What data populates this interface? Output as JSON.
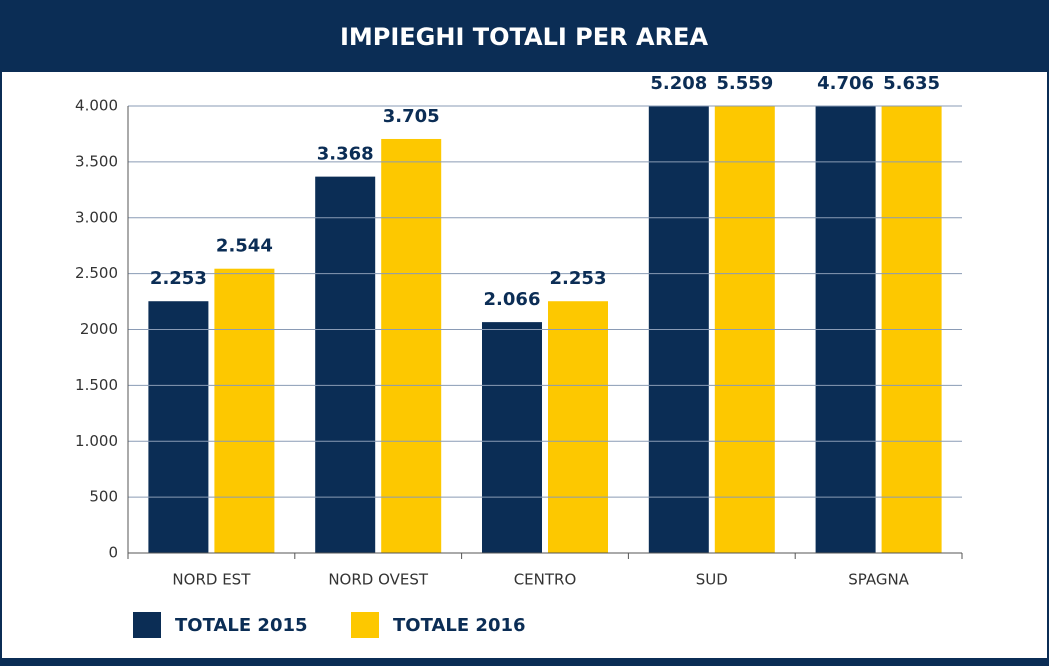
{
  "chart_data": {
    "type": "bar",
    "title": "IMPIEGHI TOTALI PER AREA",
    "categories": [
      "NORD EST",
      "NORD OVEST",
      "CENTRO",
      "SUD",
      "SPAGNA"
    ],
    "series": [
      {
        "name": "TOTALE 2015",
        "color": "#0b2d55",
        "values": [
          2253,
          3368,
          2066,
          5208,
          4706
        ],
        "value_labels": [
          "2.253",
          "3.368",
          "2.066",
          "5.208",
          "4.706"
        ]
      },
      {
        "name": "TOTALE 2016",
        "color": "#fdc800",
        "values": [
          2544,
          3705,
          2253,
          5559,
          5635
        ],
        "value_labels": [
          "2.544",
          "3.705",
          "2.253",
          "5.559",
          "5.635"
        ]
      }
    ],
    "ylim": [
      0,
      4000
    ],
    "yticks": [
      0,
      500,
      {
        "value": 1000,
        "label": "1.000"
      },
      {
        "value": 1500,
        "label": "1.500"
      },
      2000,
      {
        "value": 2500,
        "label": "2.500"
      },
      {
        "value": 3000,
        "label": "3.000"
      },
      {
        "value": 3500,
        "label": "3.500"
      },
      {
        "value": 4000,
        "label": "4.000"
      }
    ],
    "grid": true,
    "legend": "bottom"
  }
}
